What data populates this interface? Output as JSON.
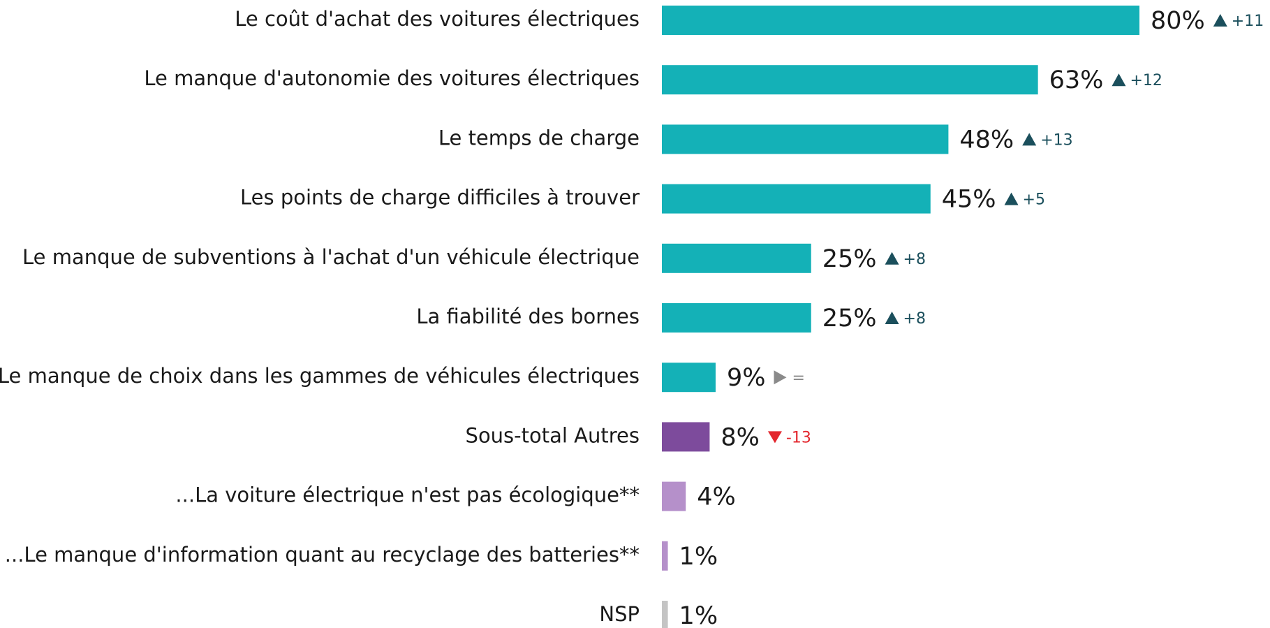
{
  "chart_data": {
    "type": "bar",
    "orientation": "horizontal",
    "categories": [
      "Le coût d'achat des voitures électriques",
      "Le manque d'autonomie des voitures électriques",
      "Le temps de charge",
      "Les points de charge difficiles à trouver",
      "Le manque de subventions à l'achat d'un véhicule électrique",
      "La fiabilité des bornes",
      "Le manque de choix dans les gammes de véhicules électriques",
      "Sous-total Autres",
      "...La voiture électrique n'est pas écologique**",
      "...Le manque d'information quant au recyclage des batteries**",
      "NSP"
    ],
    "values": [
      80,
      63,
      48,
      45,
      25,
      25,
      9,
      8,
      4,
      1,
      1
    ],
    "value_labels": [
      "80%",
      "63%",
      "48%",
      "45%",
      "25%",
      "25%",
      "9%",
      "8%",
      "4%",
      "1%",
      "1%"
    ],
    "changes": [
      "+11",
      "+12",
      "+13",
      "+5",
      "+8",
      "+8",
      "=",
      "-13",
      null,
      null,
      null
    ],
    "colors": [
      "#14b1b7",
      "#14b1b7",
      "#14b1b7",
      "#14b1b7",
      "#14b1b7",
      "#14b1b7",
      "#14b1b7",
      "#7d4b9c",
      "#b590ca",
      "#b590ca",
      "#c4c4c4"
    ]
  }
}
